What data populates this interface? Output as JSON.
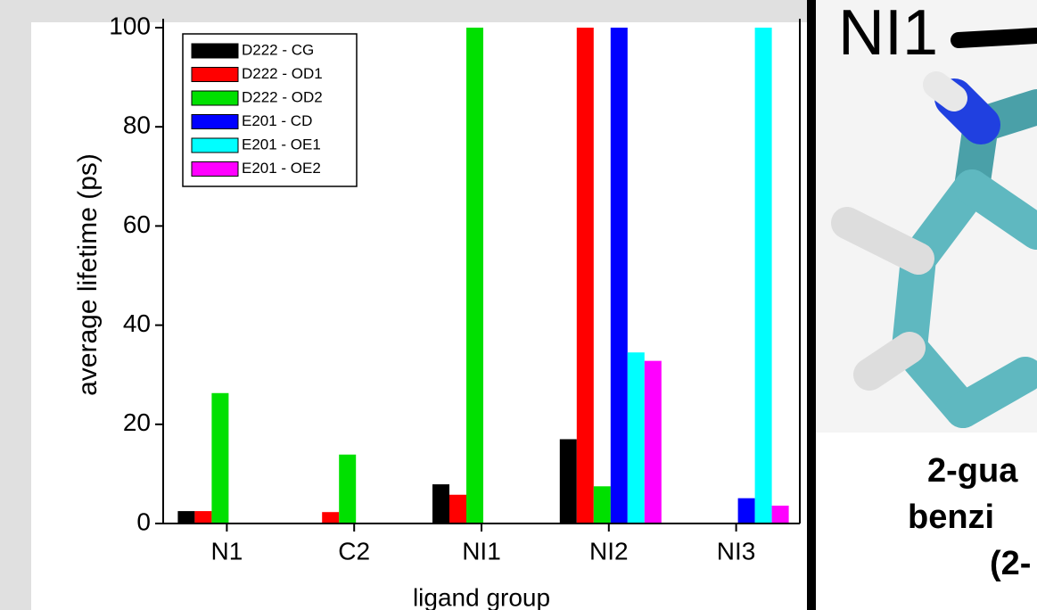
{
  "chart_data": {
    "type": "bar",
    "categories": [
      "N1",
      "C2",
      "NI1",
      "NI2",
      "NI3"
    ],
    "series": [
      {
        "name": "D222 - CG",
        "color": "#000000",
        "values": [
          2.5,
          0,
          7.9,
          17,
          0
        ]
      },
      {
        "name": "D222 - OD1",
        "color": "#ff0000",
        "values": [
          2.5,
          2.3,
          5.8,
          100,
          0
        ]
      },
      {
        "name": "D222 - OD2",
        "color": "#00e000",
        "values": [
          26.3,
          13.9,
          100,
          7.5,
          0
        ]
      },
      {
        "name": "E201 - CD",
        "color": "#0000ff",
        "values": [
          0,
          0,
          0,
          100,
          5.1
        ]
      },
      {
        "name": "E201 - OE1",
        "color": "#00ffff",
        "values": [
          0,
          0,
          0,
          34.5,
          100
        ]
      },
      {
        "name": "E201 - OE2",
        "color": "#ff00ff",
        "values": [
          0,
          0,
          0,
          32.8,
          3.6
        ]
      }
    ],
    "ylim": [
      0,
      100
    ],
    "yticks": [
      0,
      20,
      40,
      60,
      80,
      100
    ],
    "y_label": "average lifetime (ps)",
    "x_label": "ligand group",
    "legend": "upper-left"
  },
  "side_panel": {
    "atom_label": "NI1",
    "caption_lines": [
      "2-gua",
      "benzi",
      "(2-"
    ]
  }
}
